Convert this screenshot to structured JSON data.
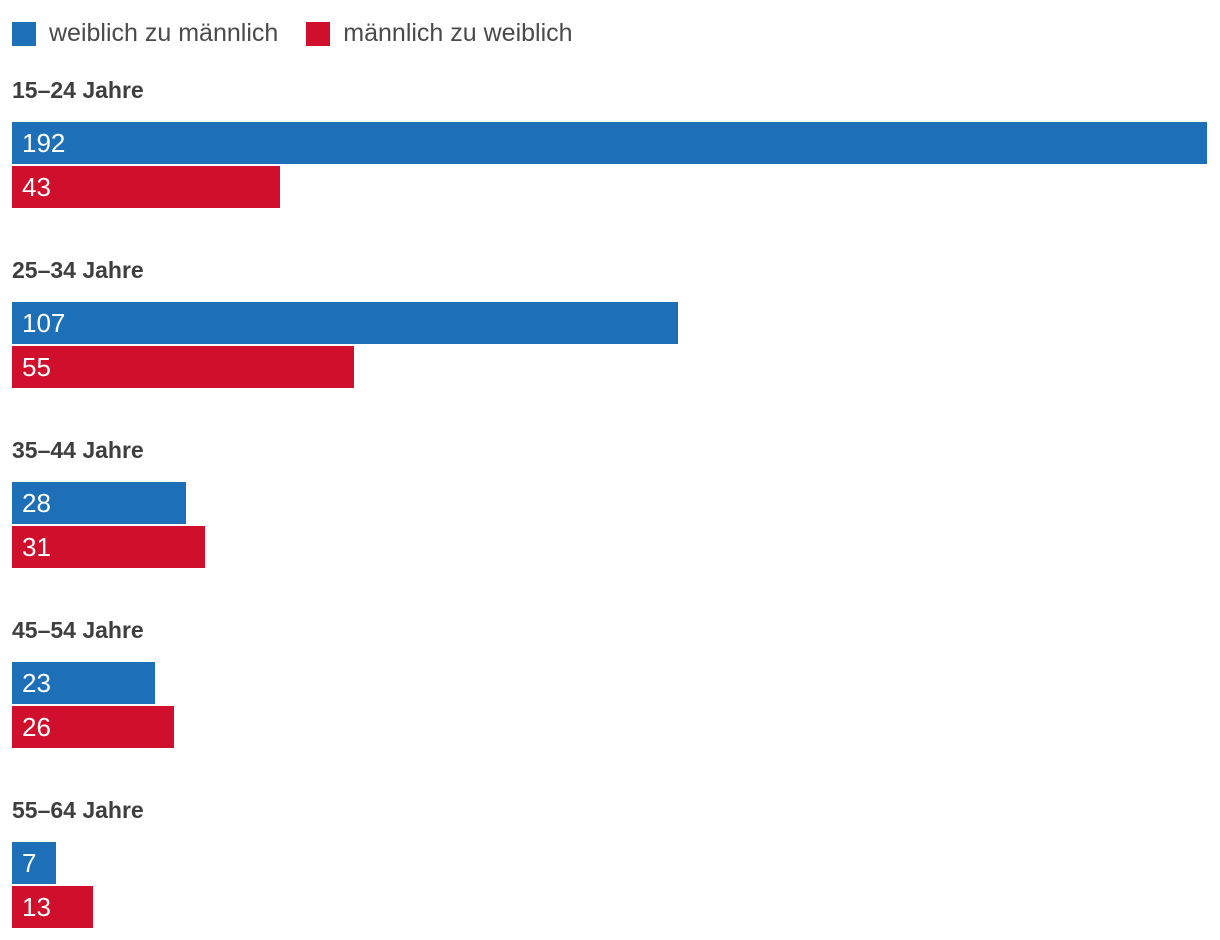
{
  "chart_data": {
    "type": "bar",
    "orientation": "horizontal",
    "title": "",
    "legend_position": "top",
    "value_labels": "inside-left",
    "max_value": 192,
    "categories": [
      "15–24 Jahre",
      "25–34 Jahre",
      "35–44 Jahre",
      "45–54 Jahre",
      "55–64 Jahre"
    ],
    "series": [
      {
        "name": "weiblich zu männlich",
        "color": "#1d70b7",
        "values": [
          192,
          107,
          28,
          23,
          7
        ]
      },
      {
        "name": "männlich zu weiblich",
        "color": "#cf0f2b",
        "values": [
          43,
          55,
          31,
          26,
          13
        ]
      }
    ]
  },
  "legend": {
    "items": [
      {
        "label": "weiblich zu männlich",
        "color": "#1d70b7"
      },
      {
        "label": "männlich zu weiblich",
        "color": "#cf0f2b"
      }
    ]
  },
  "colors": {
    "blue": "#1d70b7",
    "red": "#cf0f2b",
    "title_text": "#3e3e3e",
    "legend_text": "#4a4a4a",
    "bar_label_text": "#ffffff",
    "background": "#ffffff"
  }
}
